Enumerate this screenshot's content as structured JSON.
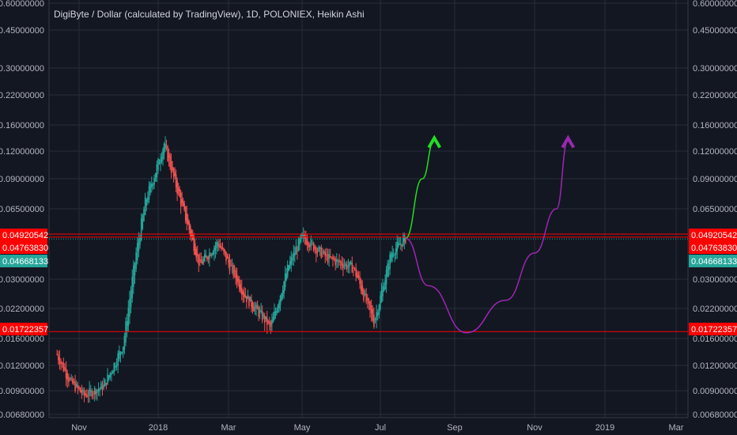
{
  "header": {
    "title": "DigiByte / Dollar (calculated by TradingView), 1D, POLONIEX, Heikin Ashi"
  },
  "colors": {
    "background": "#131722",
    "grid": "#2a2e39",
    "axis_text": "#b2b5be",
    "up_candle": "#26a69a",
    "down_candle": "#ef5350",
    "level_line": "#ff0000",
    "price_line_green": "#26a69a",
    "forecast_green": "#22dd22",
    "forecast_purple": "#9c27b0"
  },
  "axes": {
    "y_ticks": [
      "0.60000000",
      "0.45000000",
      "0.30000000",
      "0.22000000",
      "0.16000000",
      "0.12000000",
      "0.09000000",
      "0.06500000",
      "0.03000000",
      "0.02200000",
      "0.01600000",
      "0.01200000",
      "0.00900000",
      "0.00680000"
    ],
    "x_ticks": [
      "Nov",
      "2018",
      "Mar",
      "May",
      "Jul",
      "Sep",
      "Nov",
      "2019",
      "Mar"
    ]
  },
  "price_badges": [
    {
      "label": "0.04920542",
      "color": "#ff0000"
    },
    {
      "label": "0.04763830",
      "color": "#ff0000"
    },
    {
      "label": "0.04668133",
      "color": "#26a69a"
    },
    {
      "label": "0.01722357",
      "color": "#ff0000"
    }
  ],
  "chart_data": {
    "type": "candlestick",
    "symbol": "DigiByte / Dollar",
    "scale": "log",
    "horizontal_levels": [
      0.04920542,
      0.0476383,
      0.01722357
    ],
    "last_price": 0.04668133,
    "approx_close_path": [
      {
        "t": "2017-10-15",
        "v": 0.0135
      },
      {
        "t": "2017-10-25",
        "v": 0.01
      },
      {
        "t": "2017-11-05",
        "v": 0.0085
      },
      {
        "t": "2017-11-20",
        "v": 0.0095
      },
      {
        "t": "2017-12-05",
        "v": 0.015
      },
      {
        "t": "2017-12-15",
        "v": 0.04
      },
      {
        "t": "2017-12-22",
        "v": 0.07
      },
      {
        "t": "2018-01-06",
        "v": 0.13
      },
      {
        "t": "2018-01-20",
        "v": 0.07
      },
      {
        "t": "2018-02-05",
        "v": 0.035
      },
      {
        "t": "2018-02-20",
        "v": 0.045
      },
      {
        "t": "2018-03-15",
        "v": 0.025
      },
      {
        "t": "2018-04-05",
        "v": 0.018
      },
      {
        "t": "2018-04-20",
        "v": 0.035
      },
      {
        "t": "2018-05-01",
        "v": 0.048
      },
      {
        "t": "2018-05-20",
        "v": 0.038
      },
      {
        "t": "2018-06-10",
        "v": 0.034
      },
      {
        "t": "2018-06-26",
        "v": 0.019
      },
      {
        "t": "2018-07-10",
        "v": 0.04
      },
      {
        "t": "2018-07-22",
        "v": 0.047
      }
    ],
    "forecast_paths": [
      {
        "color": "green",
        "points": [
          {
            "t": "2018-07-22",
            "v": 0.047
          },
          {
            "t": "2018-08-05",
            "v": 0.09
          },
          {
            "t": "2018-08-15",
            "v": 0.135
          }
        ]
      },
      {
        "color": "purple",
        "points": [
          {
            "t": "2018-07-22",
            "v": 0.047
          },
          {
            "t": "2018-08-10",
            "v": 0.028
          },
          {
            "t": "2018-09-10",
            "v": 0.017
          },
          {
            "t": "2018-10-10",
            "v": 0.024
          },
          {
            "t": "2018-11-01",
            "v": 0.04
          },
          {
            "t": "2018-11-20",
            "v": 0.065
          },
          {
            "t": "2018-11-30",
            "v": 0.135
          }
        ]
      }
    ]
  }
}
